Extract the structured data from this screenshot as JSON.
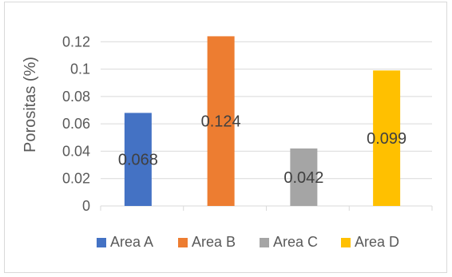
{
  "chart_data": {
    "type": "bar",
    "title": "",
    "xlabel": "",
    "ylabel": "Porositas (%)",
    "ylim": [
      0,
      0.14
    ],
    "yticks": [
      "0",
      "0.02",
      "0.04",
      "0.06",
      "0.08",
      "0.1",
      "0.12"
    ],
    "categories": [
      "Area A",
      "Area B",
      "Area C",
      "Area D"
    ],
    "values": [
      0.068,
      0.124,
      0.042,
      0.099
    ],
    "data_labels": [
      "0.068",
      "0.124",
      "0.042",
      "0.099"
    ],
    "colors": [
      "#4472c4",
      "#ed7d31",
      "#a5a5a5",
      "#ffc000"
    ],
    "legend": {
      "placement": "bottom",
      "entries": [
        "Area A",
        "Area B",
        "Area C",
        "Area D"
      ]
    },
    "grid": true
  }
}
